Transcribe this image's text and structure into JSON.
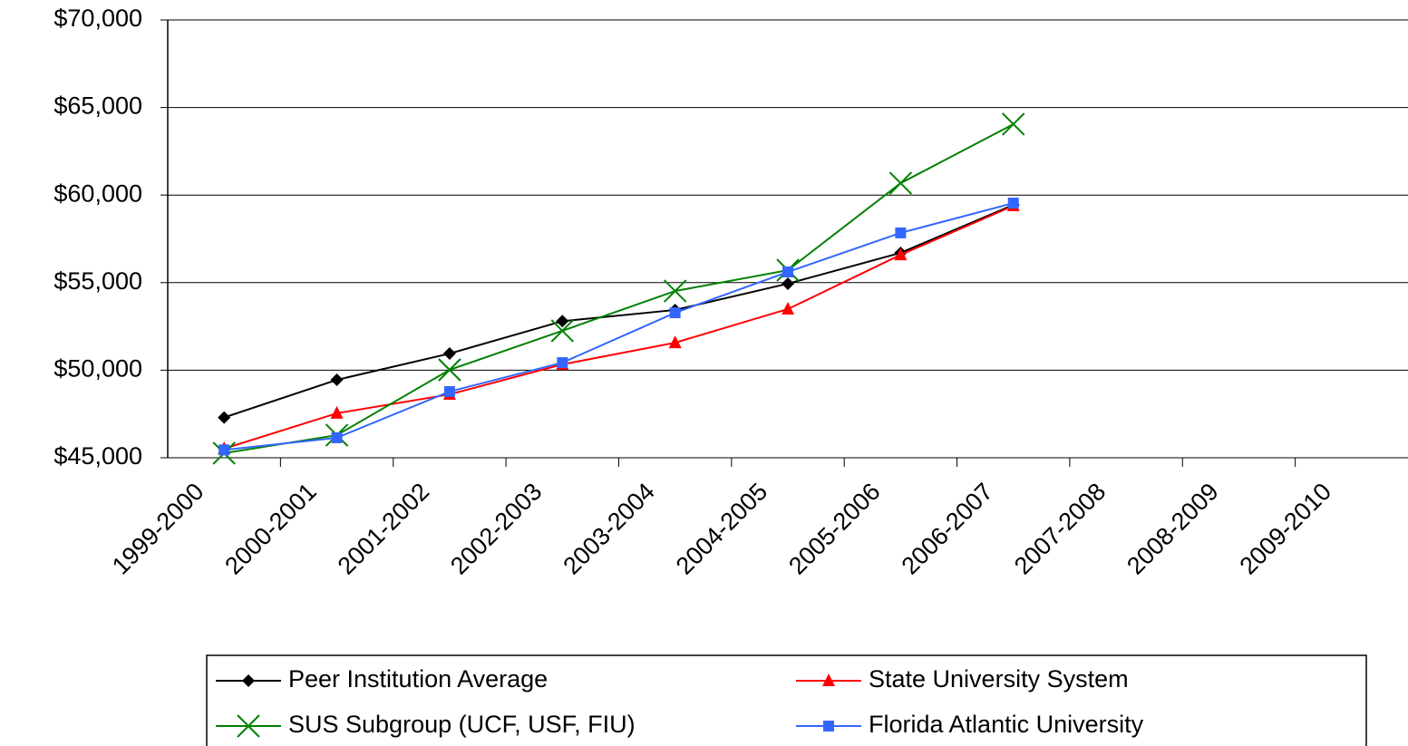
{
  "chart_data": {
    "type": "line",
    "categories": [
      "1999-2000",
      "2000-2001",
      "2001-2002",
      "2002-2003",
      "2003-2004",
      "2004-2005",
      "2005-2006",
      "2006-2007",
      "2007-2008",
      "2008-2009",
      "2009-2010"
    ],
    "series": [
      {
        "name": "Peer Institution Average",
        "color": "#000000",
        "marker": "diamond",
        "values": [
          47300,
          49450,
          50950,
          52800,
          53440,
          54940,
          56700,
          59440,
          null,
          null,
          null
        ]
      },
      {
        "name": "State University System",
        "color": "#ff0000",
        "marker": "triangle",
        "values": [
          45520,
          47540,
          48620,
          50330,
          51570,
          53490,
          56590,
          59390,
          null,
          null,
          null
        ]
      },
      {
        "name": "SUS Subgroup (UCF, USF, FIU)",
        "color": "#008000",
        "marker": "x",
        "values": [
          45260,
          46290,
          50020,
          52250,
          54520,
          55710,
          60680,
          64050,
          null,
          null,
          null
        ]
      },
      {
        "name": "Florida Atlantic University",
        "color": "#3366ff",
        "marker": "square",
        "values": [
          45450,
          46140,
          48780,
          50430,
          53280,
          55610,
          57840,
          59540,
          null,
          null,
          null
        ]
      }
    ],
    "ylim": [
      45000,
      70000
    ],
    "yticks": [
      {
        "value": 45000,
        "label": "$45,000"
      },
      {
        "value": 50000,
        "label": "$50,000"
      },
      {
        "value": 55000,
        "label": "$55,000"
      },
      {
        "value": 60000,
        "label": "$60,000"
      },
      {
        "value": 65000,
        "label": "$65,000"
      },
      {
        "value": 70000,
        "label": "$70,000"
      }
    ],
    "grid": true,
    "legend": "bottom"
  }
}
